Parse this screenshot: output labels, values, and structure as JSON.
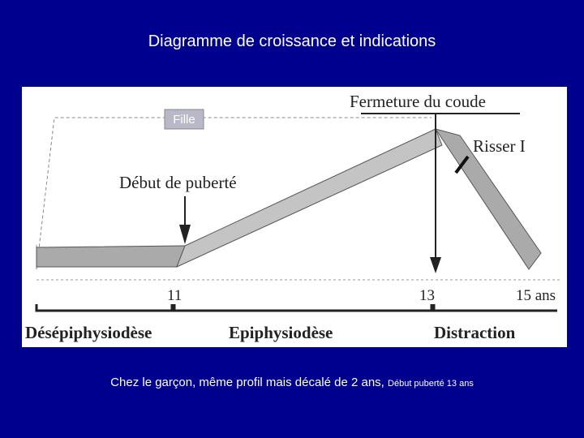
{
  "header": {
    "title": "Diagramme de croissance et indications"
  },
  "diagram": {
    "tag": "Fille",
    "elbow_closure": "Fermeture du coude",
    "risser": "Risser I",
    "puberty_start": "Début de puberté",
    "axis": {
      "ticks": [
        "11",
        "13",
        "15 ans"
      ]
    },
    "phases": [
      "Désépiphysiodèse",
      "Epiphysiodèse",
      "Distraction"
    ]
  },
  "caption": {
    "text": "Chez le garçon, même profil mais décalé de 2 ans,",
    "note": "Début puberté 13 ans"
  }
}
